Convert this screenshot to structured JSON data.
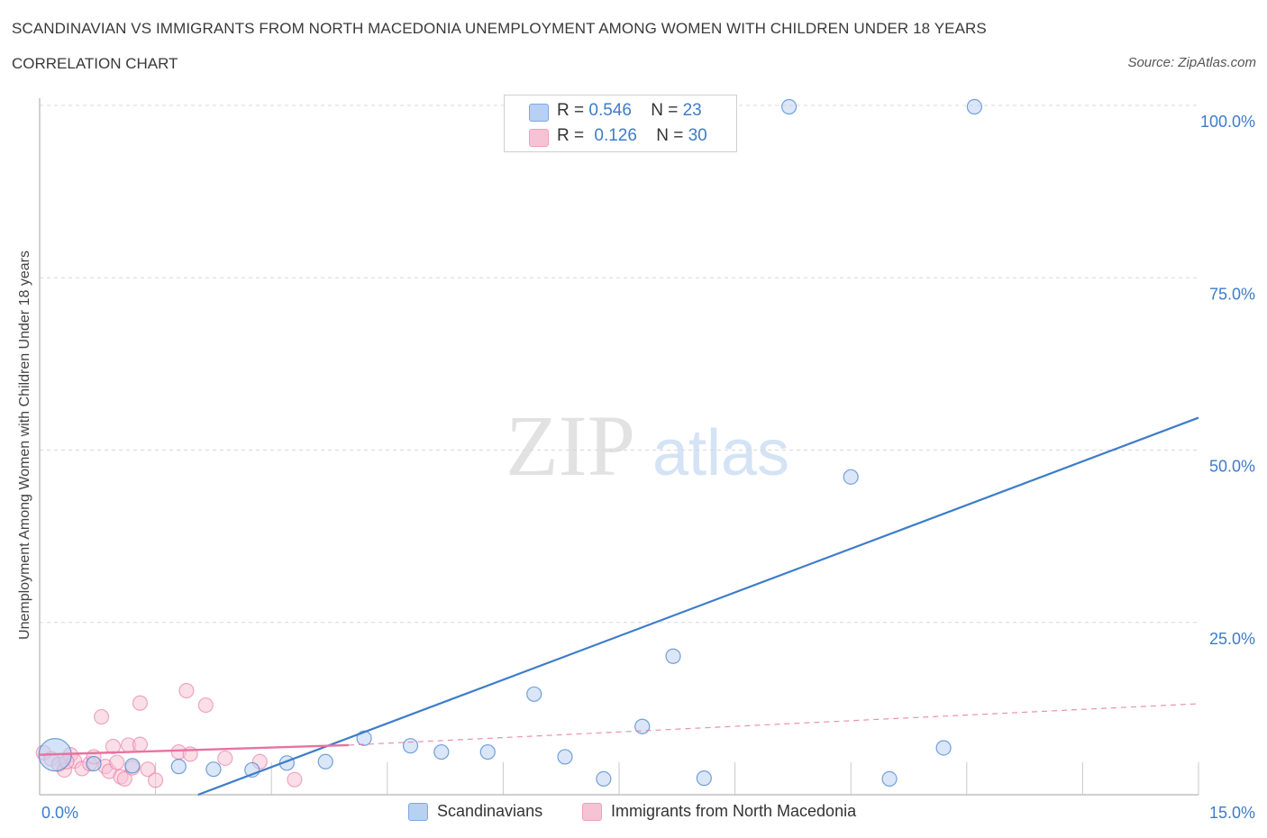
{
  "title": "SCANDINAVIAN VS IMMIGRANTS FROM NORTH MACEDONIA UNEMPLOYMENT AMONG WOMEN WITH CHILDREN UNDER 18 YEARS",
  "subtitle": "CORRELATION CHART",
  "source": "Source: ZipAtlas.com",
  "watermark": {
    "zip": "ZIP",
    "atlas": "atlas"
  },
  "colors": {
    "blue": "#3d7cc9",
    "blue_fill": "#b8d0f2",
    "pink": "#e8739e",
    "pink_fill": "#f6c3d5",
    "grid": "#d8d8d8"
  },
  "stats_legend": [
    {
      "r_label": "R =",
      "r_value": "0.546",
      "n_label": "N =",
      "n_value": "23"
    },
    {
      "r_label": "R =",
      "r_value": "0.126",
      "n_label": "N =",
      "n_value": "30"
    }
  ],
  "bottom_legend": [
    "Scandinavians",
    "Immigrants from North Macedonia"
  ],
  "chart_data": {
    "type": "scatter",
    "ylabel": "Unemployment Among Women with Children Under 18 years",
    "xlim": [
      0,
      15
    ],
    "ylim": [
      0,
      100
    ],
    "x_tick_labels": [
      {
        "value": 0,
        "label": "0.0%"
      },
      {
        "value": 15,
        "label": "15.0%"
      }
    ],
    "y_tick_labels": [
      {
        "value": 100,
        "label": "100.0%"
      },
      {
        "value": 75,
        "label": "75.0%"
      },
      {
        "value": 50,
        "label": "50.0%"
      },
      {
        "value": 25,
        "label": "25.0%"
      }
    ],
    "grid": true,
    "series": [
      {
        "name": "Scandinavians",
        "color": "#3d7cc9",
        "points": [
          [
            0.2,
            5.8
          ],
          [
            0.7,
            4.5
          ],
          [
            1.2,
            4.2
          ],
          [
            1.8,
            4.1
          ],
          [
            2.25,
            3.7
          ],
          [
            2.75,
            3.6
          ],
          [
            3.2,
            4.6
          ],
          [
            3.7,
            4.8
          ],
          [
            4.2,
            8.2
          ],
          [
            4.8,
            7.1
          ],
          [
            5.2,
            6.2
          ],
          [
            5.8,
            6.2
          ],
          [
            6.4,
            14.6
          ],
          [
            6.8,
            5.5
          ],
          [
            7.3,
            2.3
          ],
          [
            7.8,
            9.9
          ],
          [
            8.2,
            20.1
          ],
          [
            8.6,
            2.4
          ],
          [
            9.7,
            99.8
          ],
          [
            10.5,
            46.1
          ],
          [
            11.0,
            2.3
          ],
          [
            12.1,
            99.8
          ],
          [
            11.7,
            6.8
          ]
        ],
        "trend": {
          "x0": 2.05,
          "y0": 0,
          "x1": 15,
          "y1": 54.7
        }
      },
      {
        "name": "Immigrants from North Macedonia",
        "color": "#e8739e",
        "points": [
          [
            0.05,
            6.1
          ],
          [
            0.15,
            5.2
          ],
          [
            0.25,
            4.4
          ],
          [
            0.32,
            3.6
          ],
          [
            0.4,
            5.8
          ],
          [
            0.45,
            4.9
          ],
          [
            0.55,
            3.8
          ],
          [
            0.65,
            4.5
          ],
          [
            0.7,
            5.5
          ],
          [
            0.8,
            11.3
          ],
          [
            0.85,
            4.1
          ],
          [
            0.9,
            3.4
          ],
          [
            0.95,
            7.0
          ],
          [
            1.0,
            4.7
          ],
          [
            1.05,
            2.6
          ],
          [
            1.1,
            2.3
          ],
          [
            1.15,
            7.2
          ],
          [
            1.2,
            3.9
          ],
          [
            1.3,
            13.3
          ],
          [
            1.3,
            7.3
          ],
          [
            1.4,
            3.7
          ],
          [
            1.5,
            2.1
          ],
          [
            1.8,
            6.2
          ],
          [
            1.9,
            15.1
          ],
          [
            1.95,
            5.9
          ],
          [
            2.15,
            13.0
          ],
          [
            2.4,
            5.3
          ],
          [
            2.85,
            4.8
          ],
          [
            3.3,
            2.2
          ],
          [
            0.35,
            4.8
          ]
        ],
        "trend": {
          "x0": 0,
          "y0": 5.8,
          "x1": 4.0,
          "y1": 7.2
        },
        "trend_extension": {
          "x0": 4.0,
          "y0": 7.2,
          "x1": 15,
          "y1": 13.2
        }
      }
    ]
  }
}
